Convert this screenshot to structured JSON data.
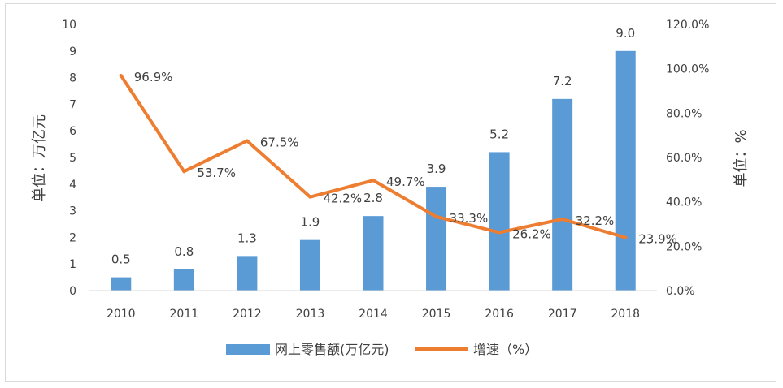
{
  "chart_data": {
    "type": "bar",
    "categories": [
      "2010",
      "2011",
      "2012",
      "2013",
      "2014",
      "2015",
      "2016",
      "2017",
      "2018"
    ],
    "series": [
      {
        "name": "网上零售额(万亿元)",
        "type": "bar",
        "axis": "left",
        "color": "#5b9bd5",
        "values": [
          0.5,
          0.8,
          1.3,
          1.9,
          2.8,
          3.9,
          5.2,
          7.2,
          9.0
        ],
        "labels": [
          "0.5",
          "0.8",
          "1.3",
          "1.9",
          "2.8",
          "3.9",
          "5.2",
          "7.2",
          "9.0"
        ]
      },
      {
        "name": "增速（%）",
        "type": "line",
        "axis": "right",
        "color": "#ed7d31",
        "values": [
          96.9,
          53.7,
          67.5,
          42.2,
          49.7,
          33.3,
          26.2,
          32.2,
          23.9
        ],
        "labels": [
          "96.9%",
          "53.7%",
          "67.5%",
          "42.2%",
          "49.7%",
          "33.3%",
          "26.2%",
          "32.2%",
          "23.9%"
        ]
      }
    ],
    "y_left": {
      "label": "单位：万亿元",
      "ylim": [
        0,
        10
      ],
      "ticks": [
        "0",
        "1",
        "2",
        "3",
        "4",
        "5",
        "6",
        "7",
        "8",
        "9",
        "10"
      ]
    },
    "y_right": {
      "label": "单位：%",
      "ylim": [
        0,
        120
      ],
      "ticks": [
        "0.0%",
        "20.0%",
        "40.0%",
        "60.0%",
        "80.0%",
        "100.0%",
        "120.0%"
      ]
    },
    "grid": false,
    "legend_position": "bottom"
  }
}
